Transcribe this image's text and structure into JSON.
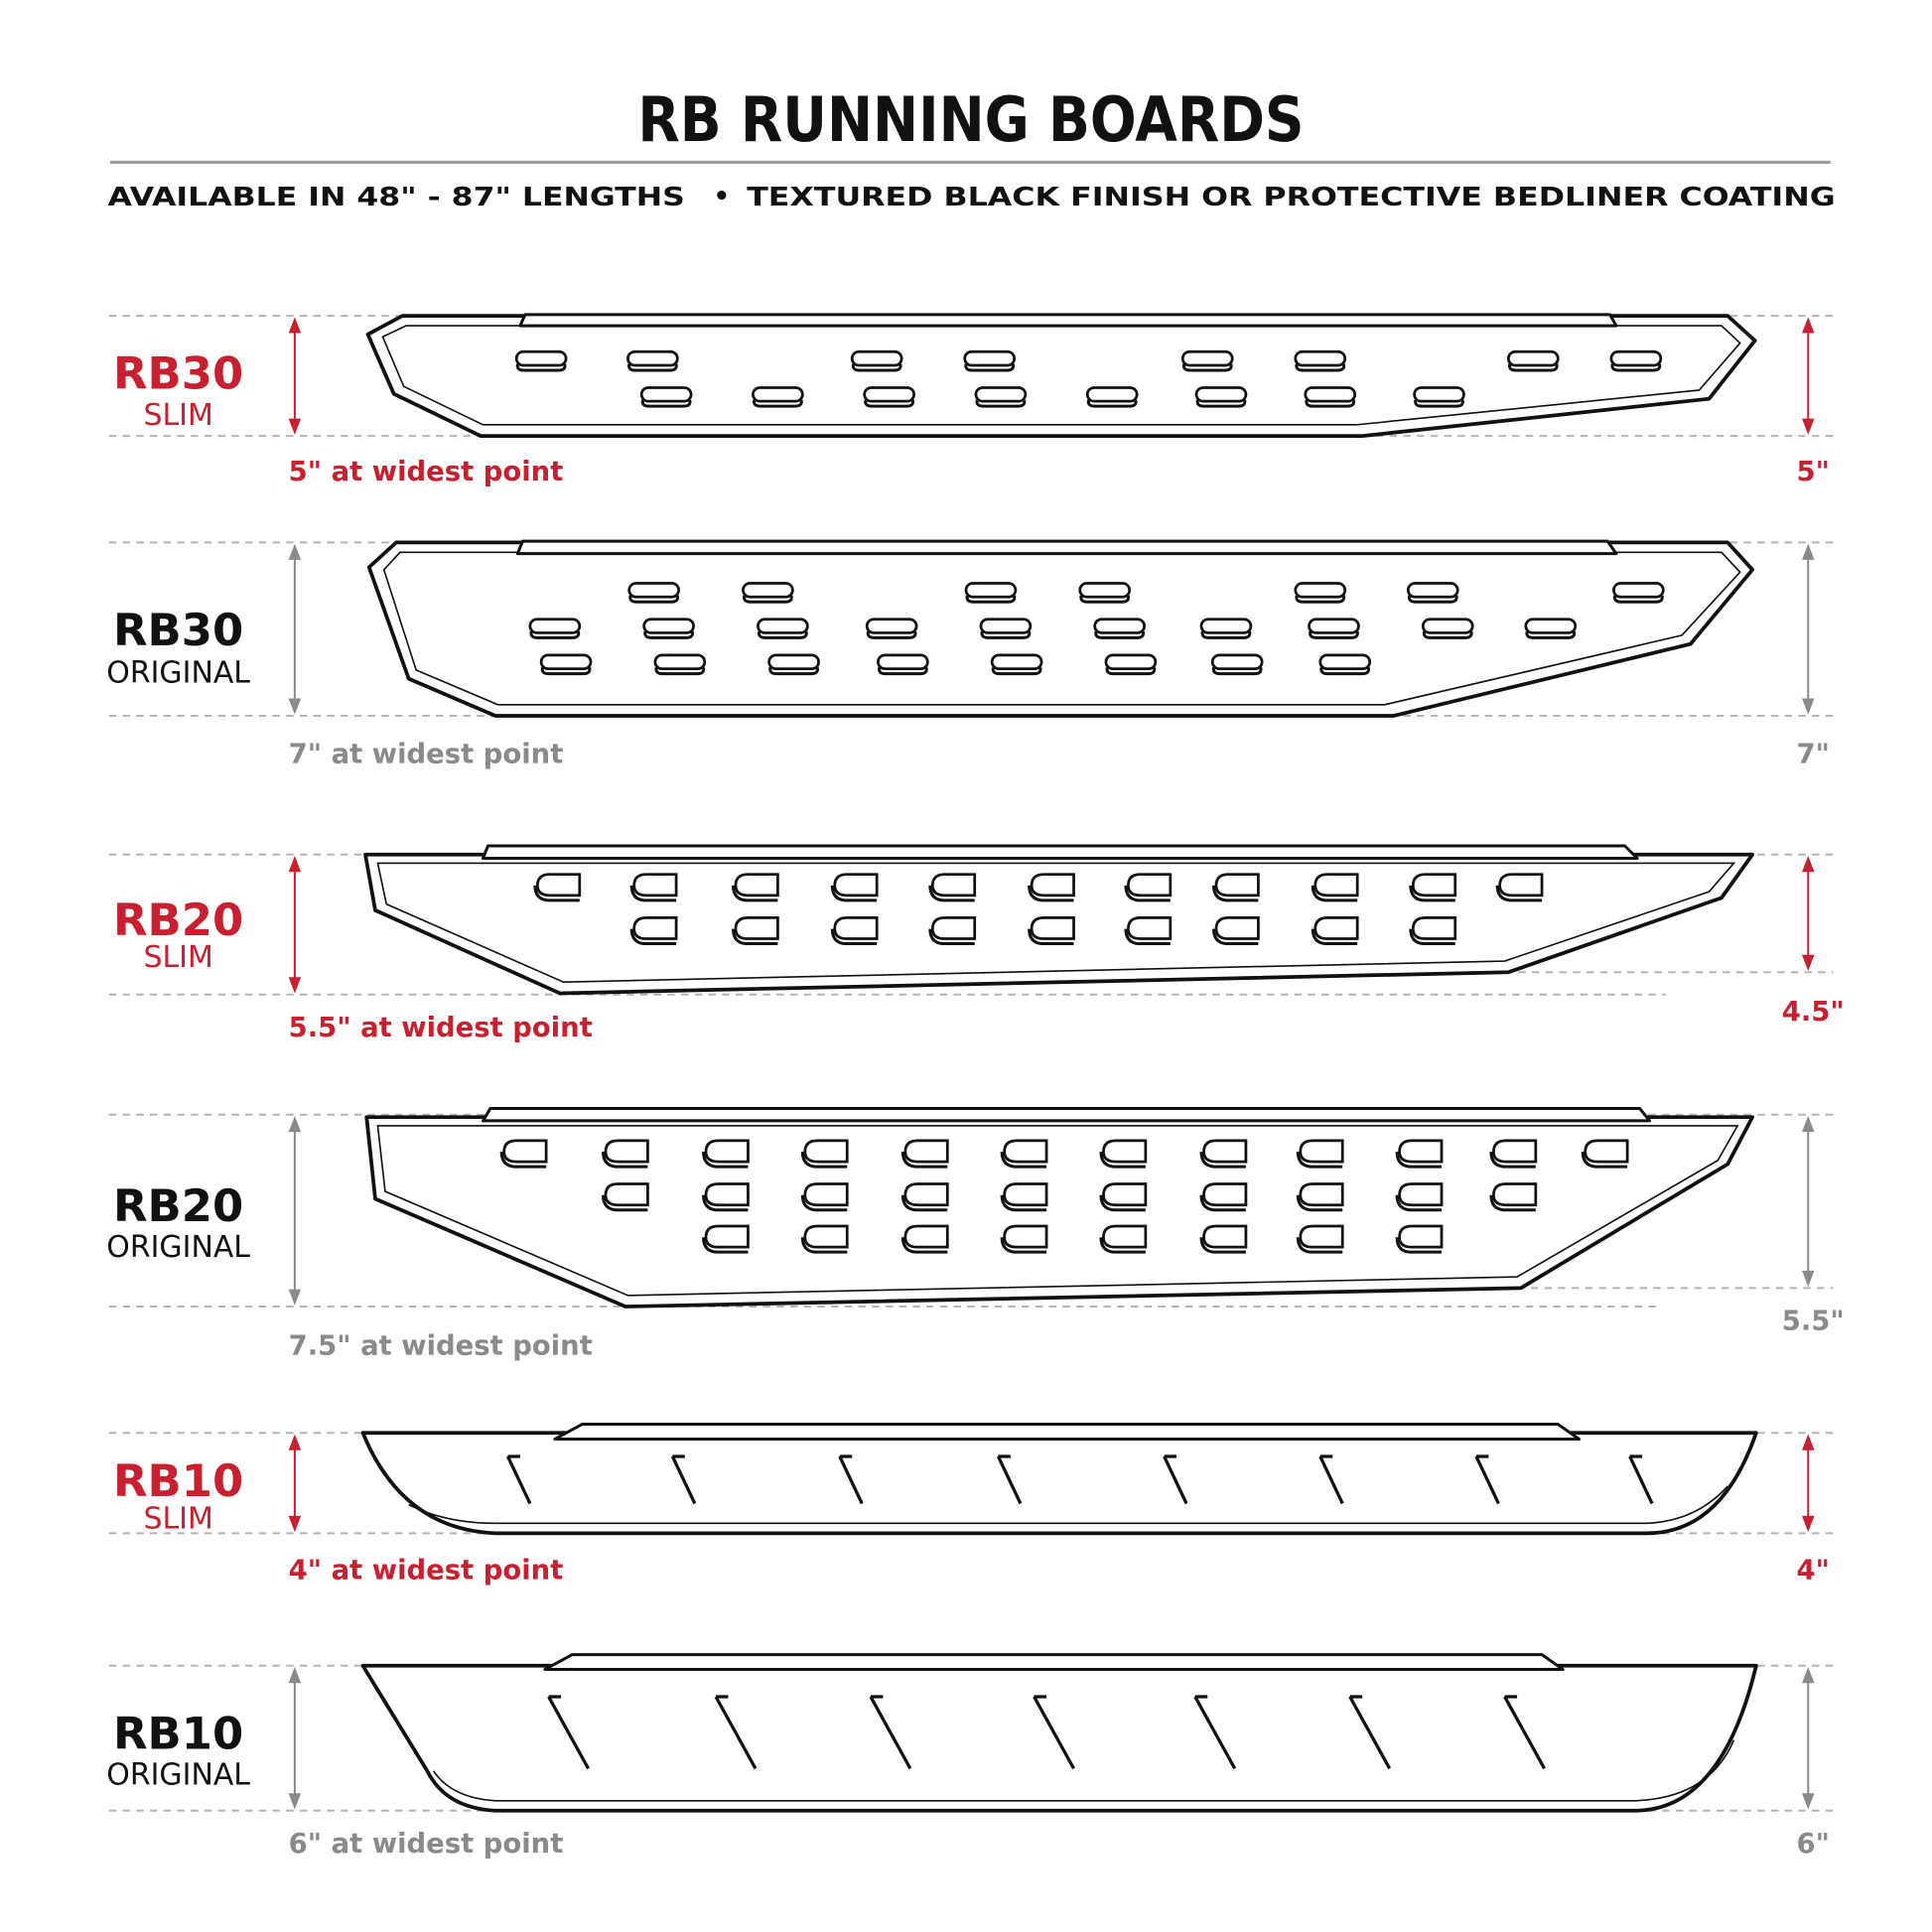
{
  "header": {
    "title": "RB RUNNING BOARDS",
    "subtitle_left": "AVAILABLE IN 48\" - 87\" LENGTHS",
    "subtitle_bullet": "•",
    "subtitle_right": "TEXTURED BLACK FINISH OR PROTECTIVE BEDLINER COATING"
  },
  "colors": {
    "accent": "#c8202f",
    "neutral": "#8a8a8a",
    "text": "#111111",
    "rule": "#9a9a9a"
  },
  "boards": [
    {
      "model": "RB30",
      "variant": "SLIM",
      "widest": "5\" at widest point",
      "dimension": "5\"",
      "highlight": true,
      "tread": "oval-slots"
    },
    {
      "model": "RB30",
      "variant": "ORIGINAL",
      "widest": "7\" at widest point",
      "dimension": "7\"",
      "highlight": false,
      "tread": "oval-slots"
    },
    {
      "model": "RB20",
      "variant": "SLIM",
      "widest": "5.5\" at widest point",
      "dimension": "4.5\"",
      "highlight": true,
      "tread": "d-slots"
    },
    {
      "model": "RB20",
      "variant": "ORIGINAL",
      "widest": "7.5\" at widest point",
      "dimension": "5.5\"",
      "highlight": false,
      "tread": "d-slots"
    },
    {
      "model": "RB10",
      "variant": "SLIM",
      "widest": "4\" at widest point",
      "dimension": "4\"",
      "highlight": true,
      "tread": "slash-ribs"
    },
    {
      "model": "RB10",
      "variant": "ORIGINAL",
      "widest": "6\" at widest point",
      "dimension": "6\"",
      "highlight": false,
      "tread": "slash-ribs"
    }
  ]
}
